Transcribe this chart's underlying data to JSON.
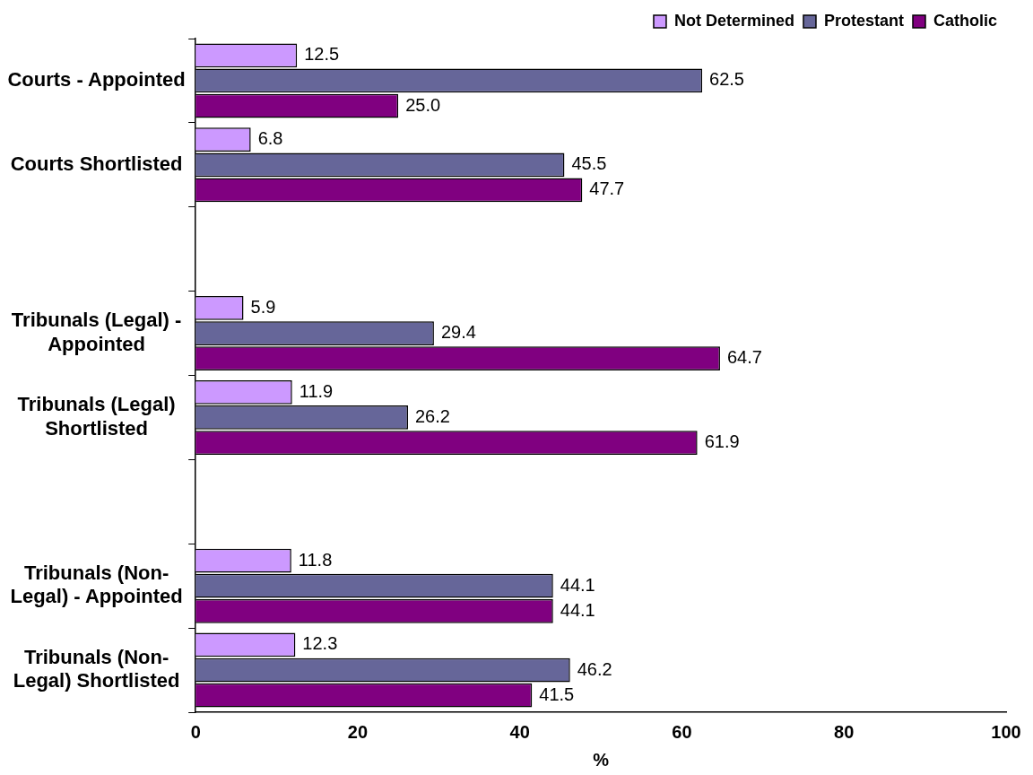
{
  "chart_data": {
    "type": "bar",
    "orientation": "horizontal",
    "xlabel": "%",
    "categories": [
      "Courts - Appointed",
      "Courts Shortlisted",
      null,
      "Tribunals (Legal) - Appointed",
      "Tribunals (Legal) Shortlisted",
      null,
      "Tribunals (Non-Legal) - Appointed",
      "Tribunals (Non-Legal) Shortlisted"
    ],
    "series": [
      {
        "name": "Not Determined",
        "color": "#cc99ff",
        "values": [
          12.5,
          6.8,
          null,
          5.9,
          11.9,
          null,
          11.8,
          12.3
        ],
        "value_labels": [
          "12.5",
          "6.8",
          null,
          "5.9",
          "11.9",
          null,
          "11.8",
          "12.3"
        ]
      },
      {
        "name": "Protestant",
        "color": "#666699",
        "values": [
          62.5,
          45.5,
          null,
          29.4,
          26.2,
          null,
          44.1,
          46.2
        ],
        "value_labels": [
          "62.5",
          "45.5",
          null,
          "29.4",
          "26.2",
          null,
          "44.1",
          "46.2"
        ]
      },
      {
        "name": "Catholic",
        "color": "#800080",
        "values": [
          25.0,
          47.7,
          null,
          64.7,
          61.9,
          null,
          44.1,
          41.5
        ],
        "value_labels": [
          "25.0",
          "47.7",
          null,
          "64.7",
          "61.9",
          null,
          "44.1",
          "41.5"
        ]
      }
    ],
    "xlim": [
      0,
      100
    ],
    "xticks": [
      0,
      20,
      40,
      60,
      80,
      100
    ],
    "grid": false,
    "legend": "top right"
  }
}
